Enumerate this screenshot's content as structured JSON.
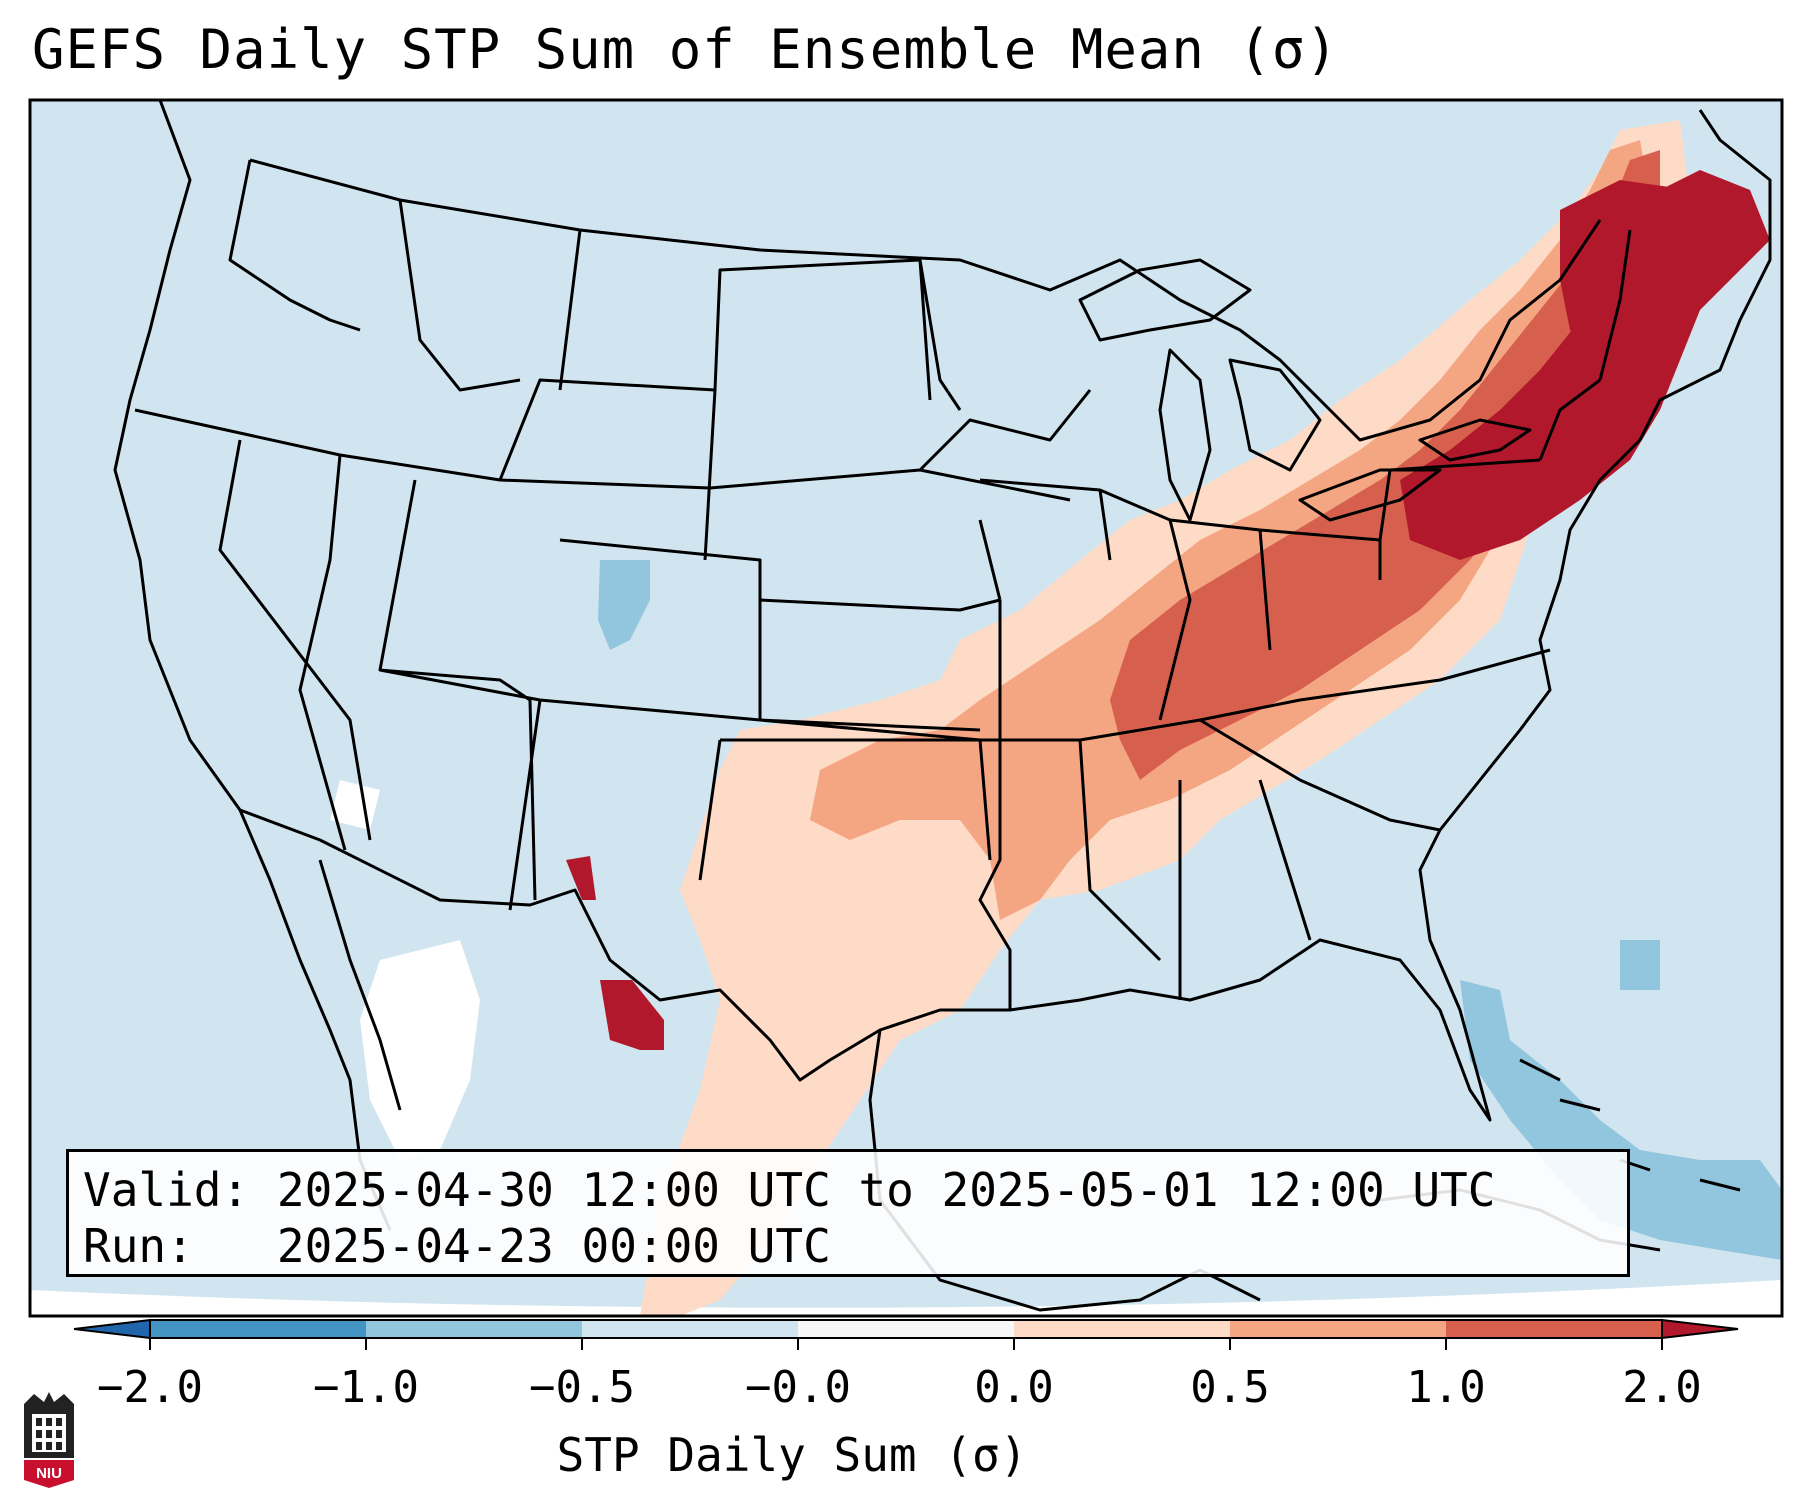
{
  "title": "GEFS Daily STP Sum of Ensemble Mean (σ)",
  "info": {
    "valid_label": "Valid:",
    "valid_value": "2025-04-30 12:00 UTC to 2025-05-01 12:00 UTC",
    "run_label": "Run:",
    "run_value": "2025-04-23 00:00 UTC"
  },
  "colorbar": {
    "label": "STP Daily Sum (σ)",
    "tick_labels": [
      "−2.0",
      "−1.0",
      "−0.5",
      "−0.0",
      "0.0",
      "0.5",
      "1.0",
      "2.0"
    ],
    "colors": [
      "#4393c3",
      "#92c5de",
      "#d1e5f0",
      "#f7f7f7",
      "#fddbc7",
      "#f4a582",
      "#d6604d"
    ],
    "extend_low_color": "#2166ac",
    "extend_high_color": "#b2182b"
  },
  "map": {
    "background_color": "#d1e5f0",
    "region_colors": {
      "light_salmon": "#fddbc7",
      "salmon": "#f4a582",
      "red": "#d6604d",
      "dark_red": "#b2182b",
      "light_blue": "#92c5de",
      "white": "#ffffff"
    }
  },
  "logo": {
    "text": "NIU"
  }
}
